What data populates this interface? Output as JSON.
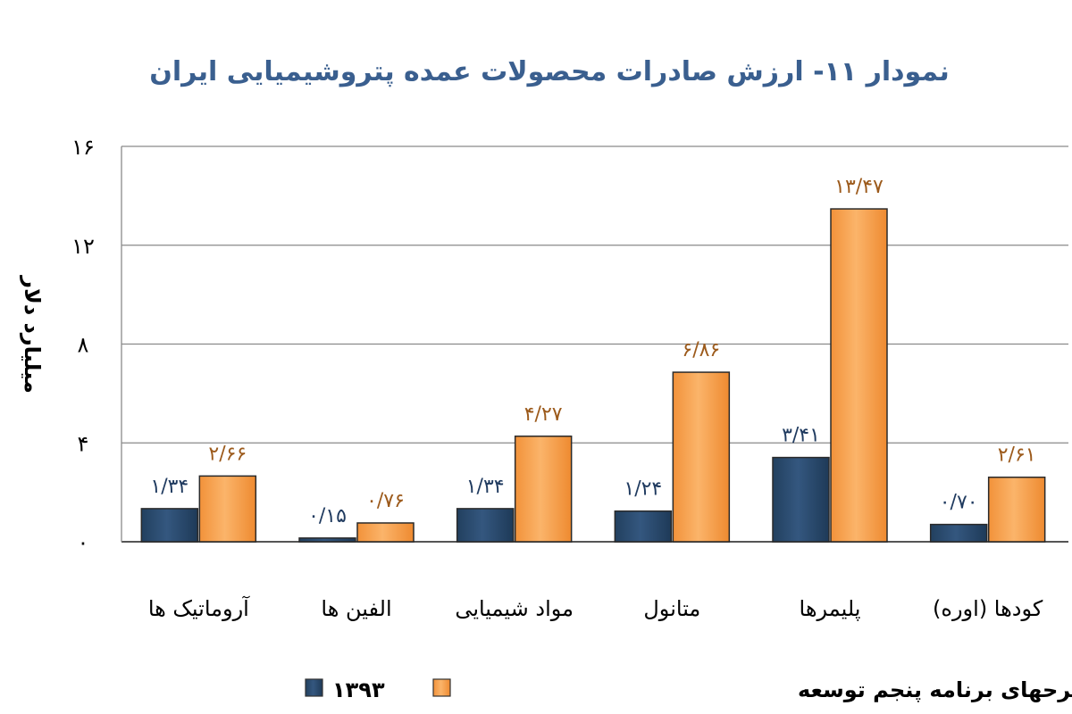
{
  "chart_data": {
    "type": "bar",
    "title": "نمودار ۱۱- ارزش صادرات محصولات عمده پتروشیمیایی ایران",
    "ylabel": "میلیارد دلار",
    "xlabel": "",
    "ylim": [
      0,
      16
    ],
    "yticks": [
      0,
      4,
      8,
      12,
      16
    ],
    "ytick_labels": [
      "۰",
      "۴",
      "۸",
      "۱۲",
      "۱۶"
    ],
    "grid": true,
    "legend_position": "bottom",
    "categories": [
      "آروماتیک ها",
      "الفین ها",
      "مواد شیمیایی",
      "متانول",
      "پلیمرها",
      "کودها (اوره)"
    ],
    "series": [
      {
        "name": "۱۳۹۳",
        "color": "#2b4a6e",
        "label_color": "#1f3a5f",
        "values": [
          1.34,
          0.15,
          1.34,
          1.24,
          3.41,
          0.7
        ],
        "labels": [
          "۱/۳۴",
          "۰/۱۵",
          "۱/۳۴",
          "۱/۲۴",
          "۳/۴۱",
          "۰/۷۰"
        ]
      },
      {
        "name": "اتمام طرحهای برنامه پنجم توسعه",
        "color": "#f7a04a",
        "label_color": "#9c5a1b",
        "values": [
          2.66,
          0.76,
          4.27,
          6.86,
          13.47,
          2.61
        ],
        "labels": [
          "۲/۶۶",
          "۰/۷۶",
          "۴/۲۷",
          "۶/۸۶",
          "۱۳/۴۷",
          "۲/۶۱"
        ]
      }
    ],
    "title_color": "#3a5f8f"
  }
}
